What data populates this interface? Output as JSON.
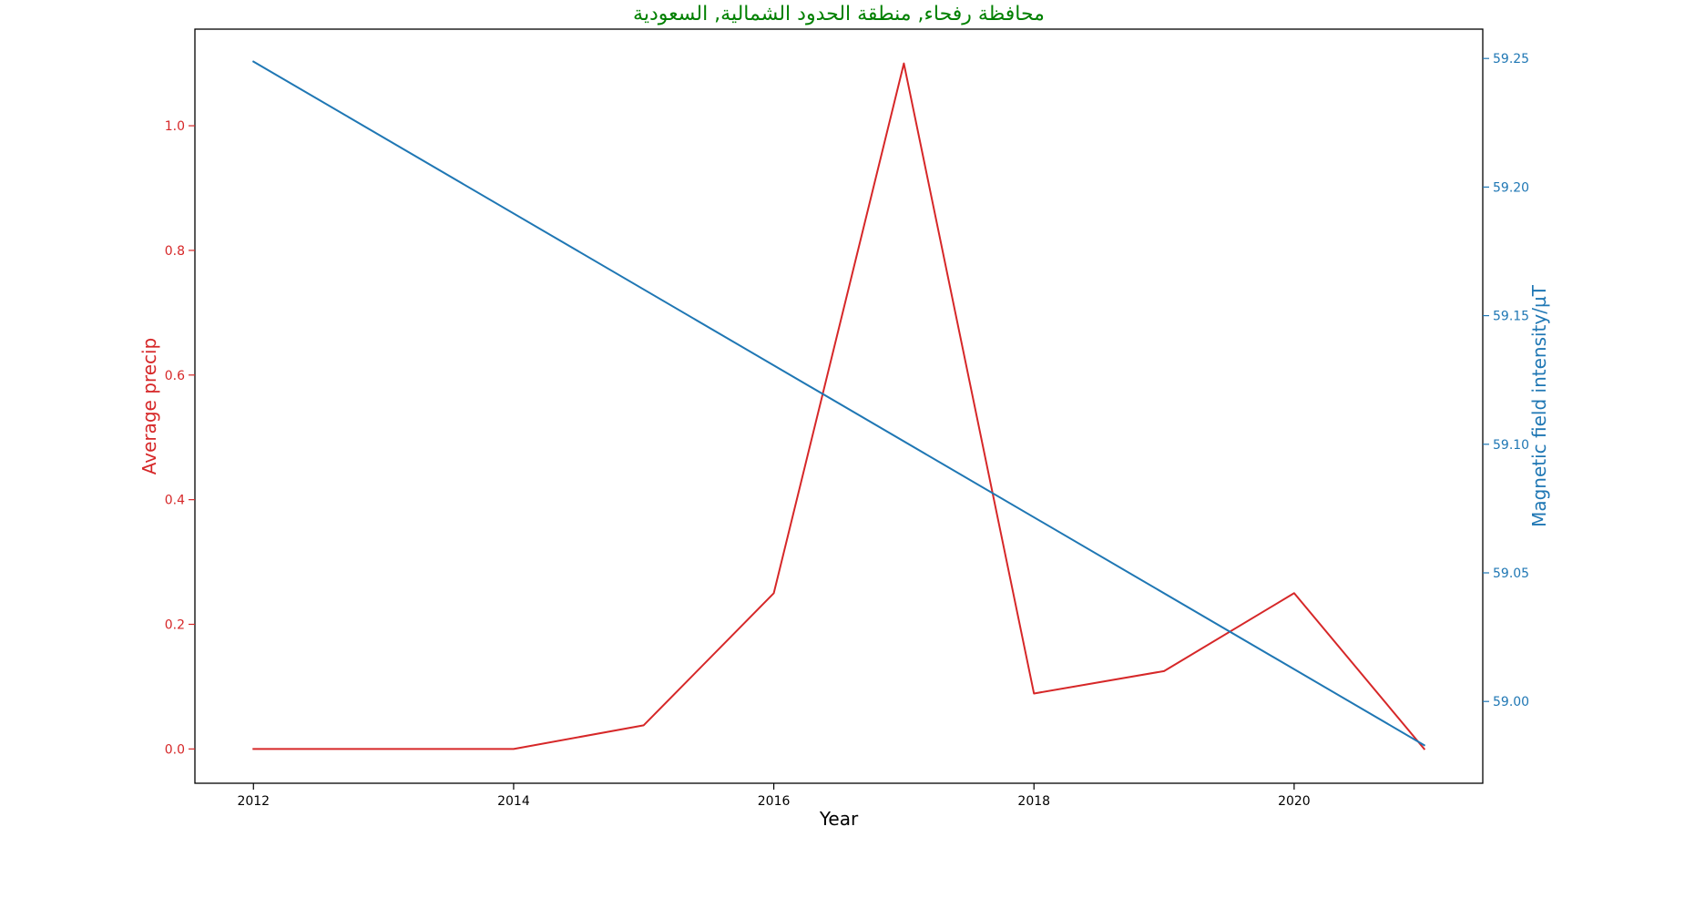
{
  "colors": {
    "title": "#008000",
    "left_series": "#d62728",
    "right_series": "#1f77b4",
    "axes": "#000000",
    "background": "#ffffff"
  },
  "chart_data": {
    "type": "line",
    "title": "محافظة رفحاء, منطقة الحدود الشمالية, السعودية",
    "xlabel": "Year",
    "ylabel_left": "Average precip",
    "ylabel_right": "Magnetic field intensity/µT",
    "xlim": [
      2011.55,
      2021.45
    ],
    "ylim_left": [
      -0.055,
      1.155
    ],
    "ylim_right": [
      58.9682,
      59.2614
    ],
    "x_ticks": [
      2012,
      2014,
      2016,
      2018,
      2020
    ],
    "x_tick_labels": [
      "2012",
      "2014",
      "2016",
      "2018",
      "2020"
    ],
    "y_left_ticks": [
      0.0,
      0.2,
      0.4,
      0.6,
      0.8,
      1.0
    ],
    "y_left_tick_labels": [
      "0.0",
      "0.2",
      "0.4",
      "0.6",
      "0.8",
      "1.0"
    ],
    "y_right_ticks": [
      59.0,
      59.05,
      59.1,
      59.15,
      59.2,
      59.25
    ],
    "y_right_tick_labels": [
      "59.00",
      "59.05",
      "59.10",
      "59.15",
      "59.20",
      "59.25"
    ],
    "grid": false,
    "legend": "none",
    "series": [
      {
        "axis": "left",
        "color": "#d62728",
        "x": [
          2012,
          2014,
          2015,
          2016,
          2017,
          2018,
          2019,
          2020,
          2021
        ],
        "y": [
          0.0,
          0.0,
          0.038,
          0.25,
          1.1,
          0.089,
          0.125,
          0.25,
          0.0
        ]
      },
      {
        "axis": "right",
        "color": "#1f77b4",
        "x": [
          2012,
          2021
        ],
        "y": [
          59.2488,
          58.983
        ]
      }
    ]
  }
}
